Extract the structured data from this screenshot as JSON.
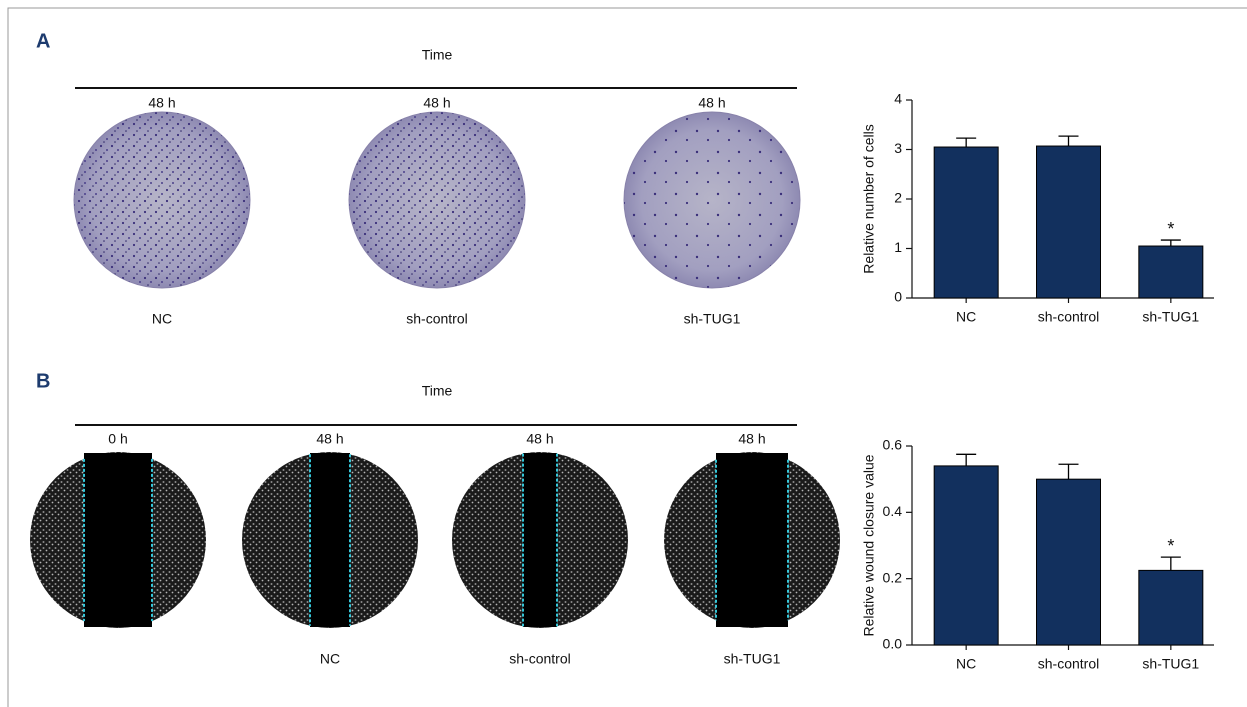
{
  "panels": {
    "A": {
      "label": "A",
      "time": "Time",
      "plates": [
        {
          "top": "48 h",
          "bottom": "NC"
        },
        {
          "top": "48 h",
          "bottom": "sh-control"
        },
        {
          "top": "48 h",
          "bottom": "sh-TUG1"
        }
      ]
    },
    "B": {
      "label": "B",
      "time": "Time",
      "plates": [
        {
          "top": "0 h",
          "bottom": null
        },
        {
          "top": "48 h",
          "bottom": "NC"
        },
        {
          "top": "48 h",
          "bottom": "sh-control"
        },
        {
          "top": "48 h",
          "bottom": "sh-TUG1"
        }
      ]
    }
  },
  "chart_data": [
    {
      "type": "bar",
      "ylabel": "Relative number of cells",
      "categories": [
        "NC",
        "sh-control",
        "sh-TUG1"
      ],
      "values": [
        3.05,
        3.07,
        1.05
      ],
      "errors": [
        0.18,
        0.2,
        0.12
      ],
      "significance": [
        null,
        null,
        "*"
      ],
      "color": "#12305e",
      "ylim": [
        0,
        4
      ],
      "yticks": [
        0,
        1,
        2,
        3,
        4
      ]
    },
    {
      "type": "bar",
      "ylabel": "Relative wound closure value",
      "categories": [
        "NC",
        "sh-control",
        "sh-TUG1"
      ],
      "values": [
        0.54,
        0.5,
        0.225
      ],
      "errors": [
        0.035,
        0.045,
        0.04
      ],
      "significance": [
        null,
        null,
        "*"
      ],
      "color": "#12305e",
      "ylim": [
        0,
        0.6
      ],
      "yticks": [
        {
          "value": 0,
          "label": "0.0"
        },
        0.2,
        0.4,
        0.6
      ]
    }
  ]
}
